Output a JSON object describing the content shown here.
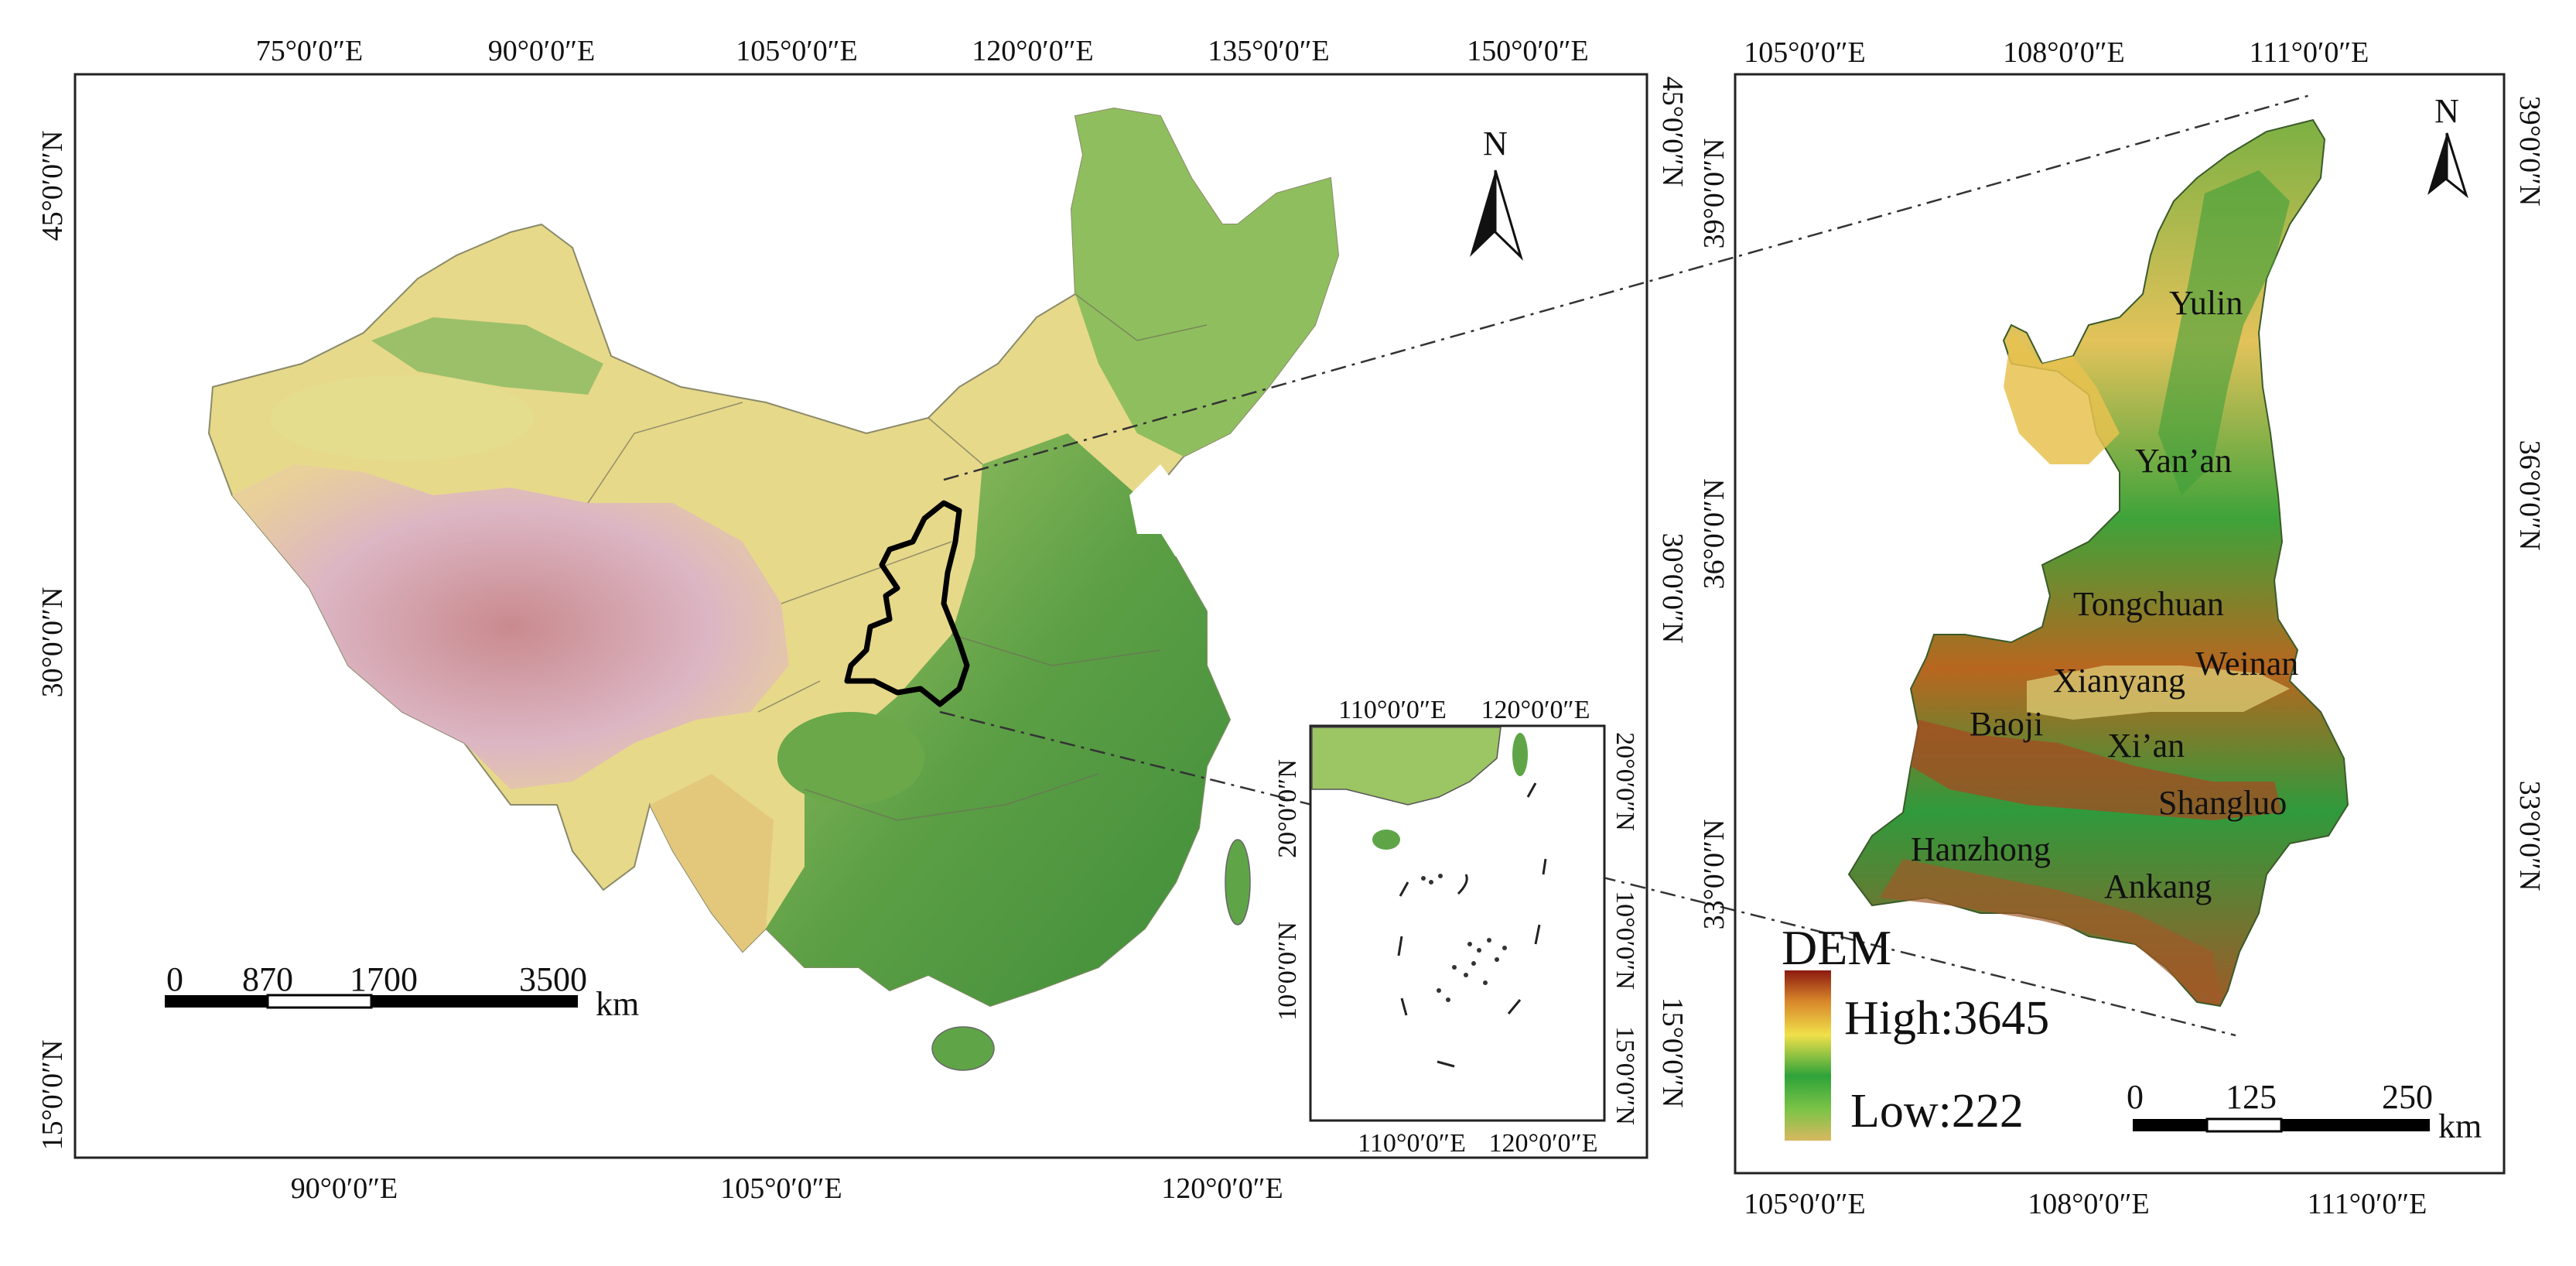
{
  "main_map": {
    "top_ticks": [
      "75°0′0″E",
      "90°0′0″E",
      "105°0′0″E",
      "120°0′0″E",
      "135°0′0″E",
      "150°0′0″E"
    ],
    "bottom_ticks": [
      "90°0′0″E",
      "105°0′0″E",
      "120°0′0″E"
    ],
    "left_ticks": [
      "45°0′0″N",
      "30°0′0″N",
      "15°0′0″N"
    ],
    "right_ticks": [
      "45°0′0″N",
      "30°0′0″N",
      "15°0′0″N"
    ],
    "north_label": "N",
    "scale_bar": {
      "labels": [
        "0",
        "870",
        "1700",
        "3500"
      ],
      "unit": "km"
    }
  },
  "inset_map": {
    "top_ticks": [
      "110°0′0″E",
      "120°0′0″E"
    ],
    "bottom_ticks": [
      "110°0′0″E",
      "120°0′0″E"
    ],
    "left_ticks": [
      "20°0′0″N",
      "10°0′0″N"
    ],
    "right_ticks": [
      "20°0′0″N",
      "10°0′0″N",
      "15°0′0″N"
    ]
  },
  "detail_map": {
    "top_ticks": [
      "105°0′0″E",
      "108°0′0″E",
      "111°0′0″E"
    ],
    "bottom_ticks": [
      "105°0′0″E",
      "108°0′0″E",
      "111°0′0″E"
    ],
    "left_ticks": [
      "39°0′0″N",
      "36°0′0″N",
      "33°0′0″N"
    ],
    "right_ticks": [
      "39°0′0″N",
      "36°0′0″N",
      "33°0′0″N"
    ],
    "north_label": "N",
    "cities": [
      "Yulin",
      "Yan’an",
      "Tongchuan",
      "Xianyang",
      "Weinan",
      "Baoji",
      "Xi’an",
      "Shangluo",
      "Hanzhong",
      "Ankang"
    ],
    "scale_bar": {
      "labels": [
        "0",
        "125",
        "250"
      ],
      "unit": "km"
    },
    "legend": {
      "title": "DEM",
      "high": "High:3645",
      "low": "Low:222"
    }
  },
  "colors": {
    "lowland_green": "#4f9a3c",
    "mid_green": "#8cbf5a",
    "yellow": "#e8d27a",
    "brown": "#a8542a",
    "high_pink": "#d9b3c0",
    "outline": "#000000"
  }
}
